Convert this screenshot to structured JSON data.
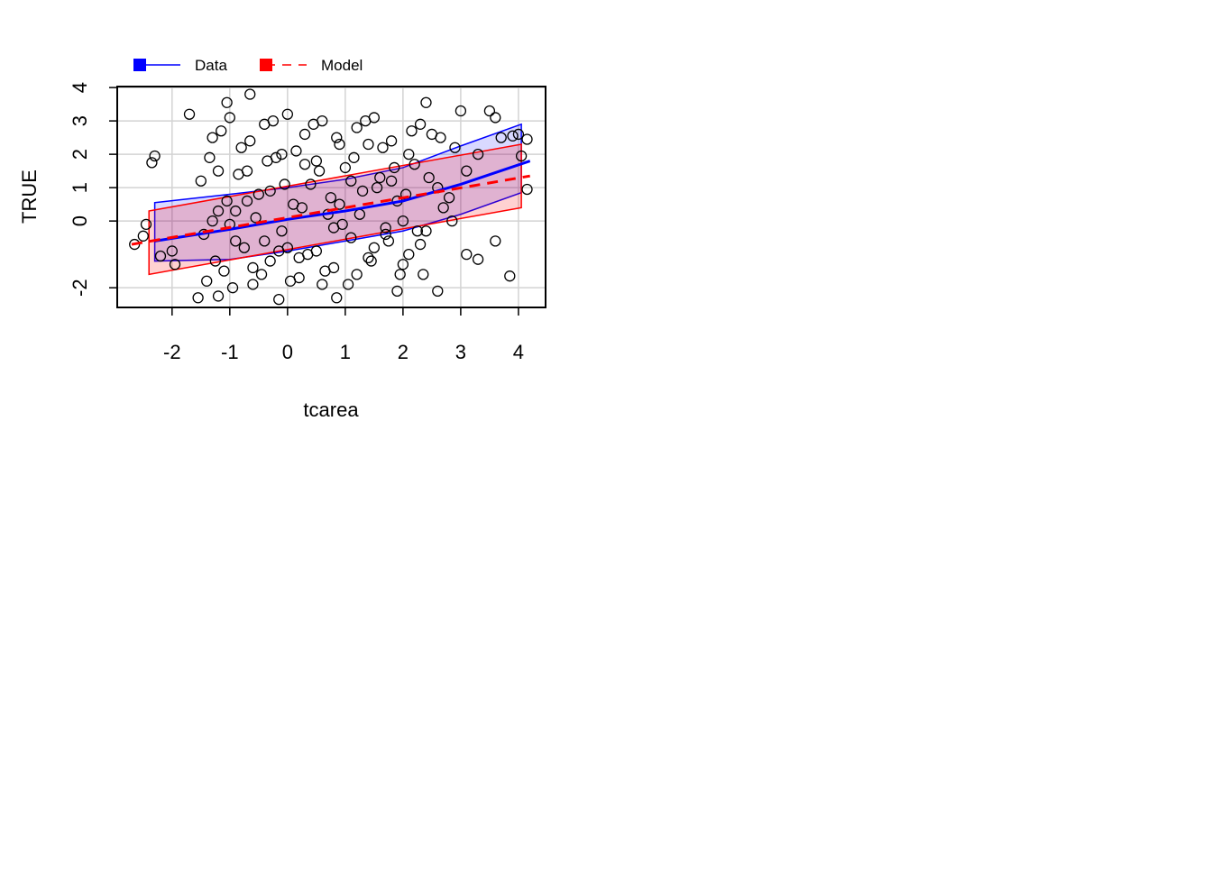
{
  "chart_data": {
    "type": "scatter",
    "xlabel": "tcarea",
    "ylabel": "TRUE",
    "xlim": [
      -2.95,
      4.47
    ],
    "ylim": [
      -2.59,
      4.03
    ],
    "xticks": [
      -2,
      -1,
      0,
      1,
      2,
      3,
      4
    ],
    "yticks": [
      -2,
      0,
      1,
      2,
      3,
      4
    ],
    "grid": true,
    "legend": "top-left",
    "points": {
      "x": [
        -2.65,
        -2.5,
        -2.45,
        -2.3,
        -2.35,
        -1.7,
        -2.2,
        -1.95,
        -2.0,
        -0.65,
        -1.05,
        2.4,
        3.5,
        3.6,
        4.0,
        4.15,
        3.9,
        4.15,
        4.05,
        3.85,
        3.6,
        3.3,
        3.1,
        2.6,
        1.9,
        -1.55,
        -0.15,
        0.85,
        -1.2,
        2.35,
        3.0,
        -1.5,
        -1.4,
        -1.3,
        -1.2,
        -1.1,
        -1.0,
        -0.9,
        -0.8,
        -0.7,
        -0.6,
        -0.5,
        -0.4,
        -0.3,
        -0.2,
        -0.1,
        0.0,
        0.1,
        0.2,
        0.3,
        0.4,
        0.5,
        0.6,
        0.7,
        0.8,
        0.9,
        1.0,
        1.1,
        1.2,
        1.3,
        1.4,
        1.5,
        1.6,
        1.7,
        1.8,
        1.9,
        2.0,
        2.1,
        2.2,
        2.3,
        2.5,
        2.7,
        2.9,
        -1.45,
        -1.35,
        -1.25,
        -1.15,
        -1.05,
        -0.95,
        -0.85,
        -0.75,
        -0.65,
        -0.55,
        -0.45,
        -0.35,
        -0.25,
        -0.15,
        -0.05,
        0.05,
        0.15,
        0.25,
        0.35,
        0.45,
        0.55,
        0.65,
        0.75,
        0.85,
        0.95,
        1.05,
        1.15,
        1.25,
        1.35,
        1.45,
        1.55,
        1.65,
        1.75,
        1.85,
        1.95,
        2.05,
        2.15,
        2.25,
        2.45,
        2.65,
        2.85,
        3.1,
        -1.3,
        -1.0,
        -0.7,
        -0.4,
        -0.1,
        0.2,
        0.5,
        0.8,
        1.1,
        1.4,
        1.7,
        2.0,
        2.3,
        2.6,
        -1.2,
        -0.9,
        -0.6,
        -0.3,
        0.0,
        0.3,
        0.6,
        0.9,
        1.2,
        1.5,
        1.8,
        2.1,
        2.4,
        2.8,
        3.3,
        3.7
      ],
      "y": [
        -0.7,
        -0.45,
        -0.1,
        1.95,
        1.75,
        3.2,
        -1.05,
        -1.3,
        -0.9,
        3.8,
        3.55,
        3.55,
        3.3,
        3.1,
        2.6,
        2.45,
        2.55,
        0.95,
        1.95,
        -1.65,
        -0.6,
        -1.15,
        -1.0,
        -2.1,
        -2.1,
        -2.3,
        -2.35,
        -2.3,
        -2.25,
        -1.6,
        3.3,
        1.2,
        -1.8,
        2.5,
        0.3,
        -1.5,
        3.1,
        -0.6,
        2.2,
        1.5,
        -1.9,
        0.8,
        2.9,
        -1.2,
        1.9,
        -0.3,
        3.2,
        0.5,
        -1.7,
        2.6,
        1.1,
        -0.9,
        3.0,
        0.2,
        -1.4,
        2.3,
        1.6,
        -0.5,
        2.8,
        0.9,
        -1.1,
        3.1,
        1.3,
        -0.2,
        2.4,
        0.6,
        -1.3,
        2.0,
        1.7,
        -0.7,
        2.6,
        0.4,
        2.2,
        -0.4,
        1.9,
        -1.2,
        2.7,
        0.6,
        -2.0,
        1.4,
        -0.8,
        2.4,
        0.1,
        -1.6,
        1.8,
        3.0,
        -0.9,
        1.1,
        -1.8,
        2.1,
        0.4,
        -1.0,
        2.9,
        1.5,
        -1.5,
        0.7,
        2.5,
        -0.1,
        -1.9,
        1.9,
        0.2,
        3.0,
        -1.2,
        1.0,
        2.2,
        -0.6,
        1.6,
        -1.6,
        0.8,
        2.7,
        -0.3,
        1.3,
        2.5,
        0.0,
        1.5,
        0.0,
        -0.1,
        0.6,
        -0.6,
        2.0,
        -1.1,
        1.8,
        -0.2,
        1.2,
        2.3,
        -0.4,
        0.0,
        2.9,
        1.0,
        1.5,
        0.3,
        -1.4,
        0.9,
        -0.8,
        1.7,
        -1.9,
        0.5,
        -1.6,
        -0.8,
        1.2,
        -1.0,
        -0.3,
        0.7,
        2.0,
        2.5
      ]
    },
    "series": [
      {
        "name": "Data",
        "color": "#0000ff",
        "dash": false,
        "x": [
          -2.3,
          -1,
          0,
          1,
          2,
          3,
          4.2
        ],
        "values": [
          -0.6,
          -0.25,
          0.05,
          0.3,
          0.6,
          1.1,
          1.8
        ],
        "band_x": [
          -2.3,
          -1,
          0,
          1,
          2,
          3,
          4.05
        ],
        "upper": [
          0.55,
          0.8,
          1.0,
          1.25,
          1.6,
          2.25,
          2.9
        ],
        "lower": [
          -1.2,
          -1.15,
          -0.9,
          -0.6,
          -0.3,
          0.2,
          0.85
        ]
      },
      {
        "name": "Model",
        "color": "#ff0000",
        "dash": true,
        "x": [
          -2.7,
          4.2
        ],
        "values": [
          -0.7,
          1.35
        ],
        "band_x": [
          -2.4,
          4.05
        ],
        "upper": [
          0.3,
          2.3
        ],
        "lower": [
          -1.6,
          0.4
        ]
      }
    ]
  }
}
